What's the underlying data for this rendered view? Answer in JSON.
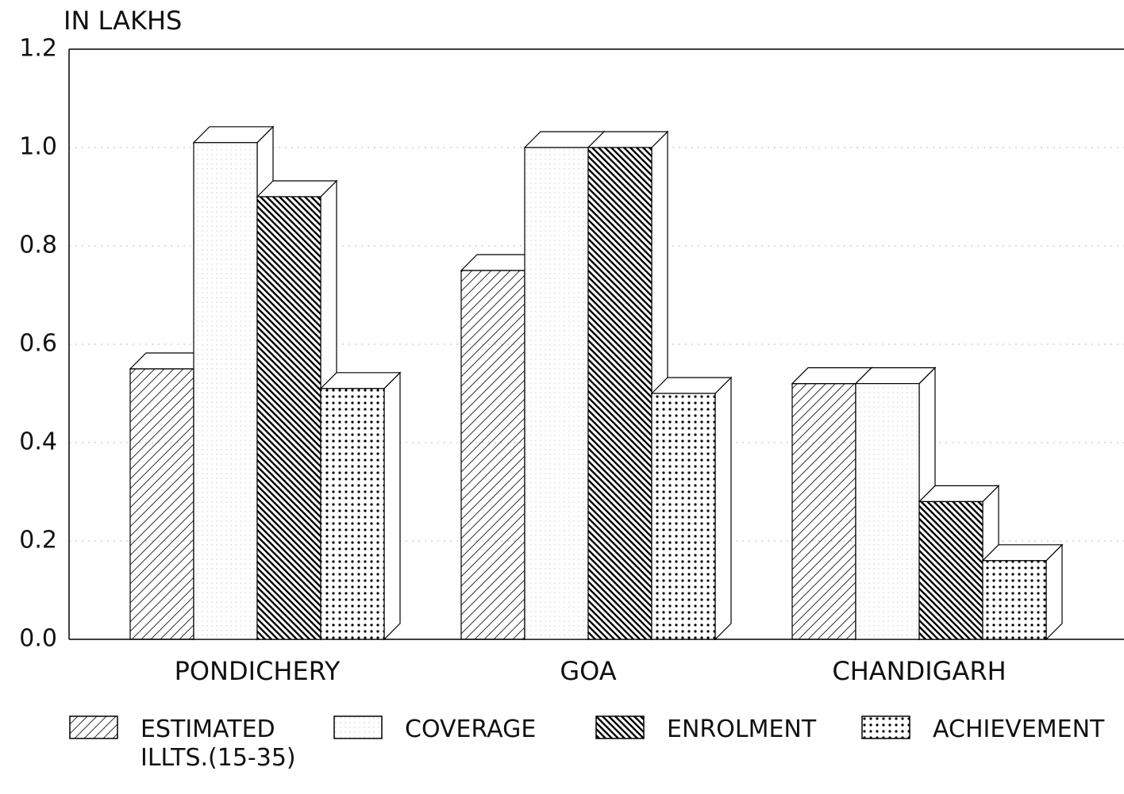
{
  "chart_data": {
    "type": "bar",
    "title": "IN LAKHS",
    "categories": [
      "PONDICHERY",
      "GOA",
      "CHANDIGARH"
    ],
    "series": [
      {
        "name": "ESTIMATED ILLTS.(15-35)",
        "color": "#000000",
        "values": [
          0.55,
          0.75,
          0.52
        ]
      },
      {
        "name": "COVERAGE",
        "color": "#000000",
        "values": [
          1.01,
          1.0,
          0.52
        ]
      },
      {
        "name": "ENROLMENT",
        "color": "#000000",
        "values": [
          0.9,
          1.0,
          0.28
        ]
      },
      {
        "name": "ACHIEVEMENT",
        "color": "#000000",
        "values": [
          0.51,
          0.5,
          0.16
        ]
      }
    ],
    "ylim": [
      0,
      1.2
    ],
    "yticks": [
      {
        "value": 0,
        "label": "0.0"
      },
      0.2,
      0.4,
      0.6,
      0.8,
      {
        "value": 1,
        "label": "1.0"
      },
      1.2
    ],
    "grid": true
  }
}
